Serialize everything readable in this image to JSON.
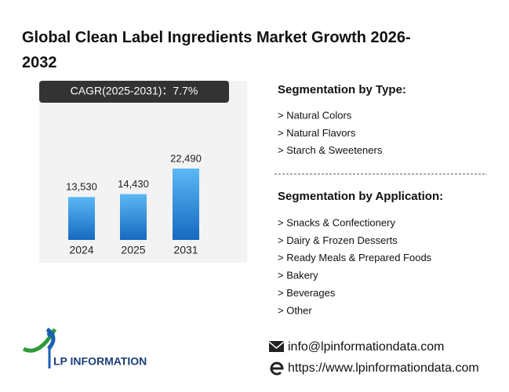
{
  "chart_data": {
    "type": "bar",
    "title": "Global Clean Label Ingredients Market Growth 2026-2032",
    "annotation": "CAGR(2025-2031)：7.7%",
    "categories": [
      "2024",
      "2025",
      "2031"
    ],
    "values": [
      13530,
      14430,
      22490
    ],
    "value_labels": [
      "13,530",
      "14,430",
      "22,490"
    ],
    "color": "#2a8ce0"
  },
  "segments": {
    "type": {
      "title": "Segmentation by Type:",
      "items": [
        "> Natural Colors",
        "> Natural Flavors",
        "> Starch & Sweeteners"
      ]
    },
    "application": {
      "title": "Segmentation by Application:",
      "items": [
        "> Snacks & Confectionery",
        "> Dairy & Frozen Desserts",
        "> Ready Meals & Prepared Foods",
        "> Bakery",
        "> Beverages",
        "> Other"
      ]
    }
  },
  "contact": {
    "email": "info@lpinformationdata.com",
    "web": "https://www.lpinformationdata.com"
  },
  "logo": "LP INFORMATION"
}
